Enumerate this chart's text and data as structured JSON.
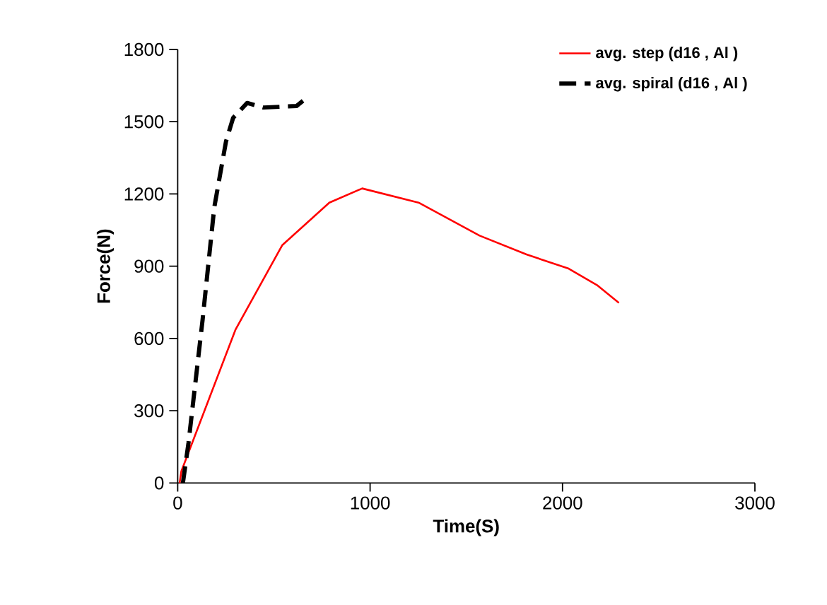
{
  "chart_data": {
    "type": "line",
    "xlabel": "Time(S)",
    "ylabel": "Force(N)",
    "xlim": [
      0,
      3000
    ],
    "xticks": [
      0,
      1000,
      2000,
      3000
    ],
    "ylim": [
      0,
      1800
    ],
    "yticks": [
      0,
      300,
      600,
      900,
      1200,
      1500,
      1800
    ],
    "grid": false,
    "legend": "top right",
    "marker": "none",
    "series": [
      {
        "name": "avg. step (d16 , Al )",
        "color": "#ff0000",
        "line_style": "solid",
        "x": [
          10,
          19,
          300,
          544,
          788,
          959,
          1252,
          1569,
          1813,
          2032,
          2179,
          2293
        ],
        "values": [
          0,
          49,
          636,
          988,
          1164,
          1223,
          1164,
          1027,
          949,
          890,
          822,
          748
        ]
      },
      {
        "name": "avg. spiral (d16 , Al )",
        "color": "#000000",
        "line_style": "dashed",
        "x": [
          27,
          56,
          129,
          190,
          251,
          288,
          361,
          446,
          617,
          678
        ],
        "values": [
          0,
          166,
          675,
          1144,
          1418,
          1516,
          1578,
          1559,
          1565,
          1604
        ]
      }
    ]
  }
}
